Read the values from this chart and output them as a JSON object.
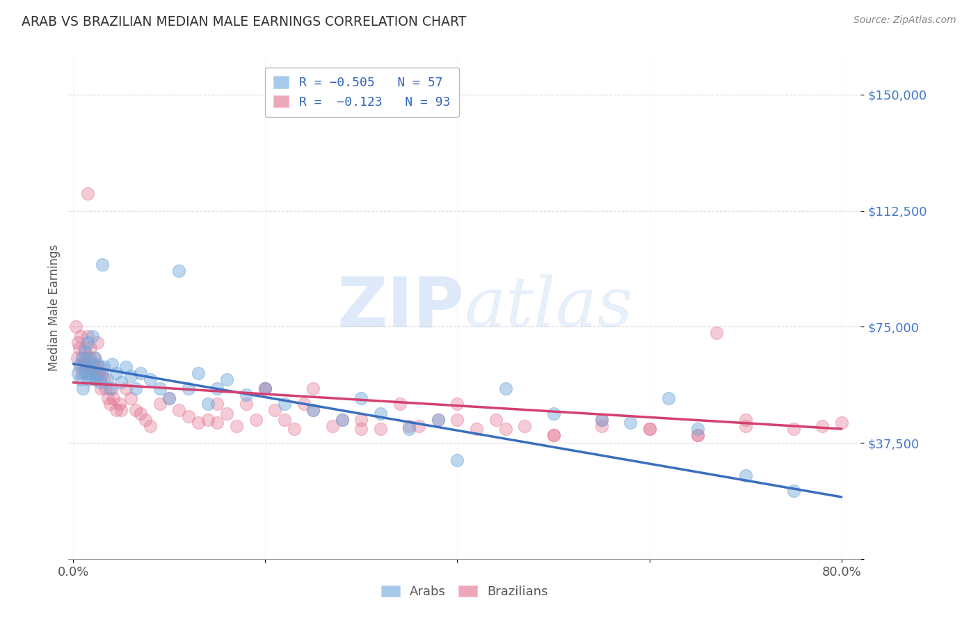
{
  "title": "ARAB VS BRAZILIAN MEDIAN MALE EARNINGS CORRELATION CHART",
  "source": "Source: ZipAtlas.com",
  "ylabel": "Median Male Earnings",
  "ytick_values": [
    0,
    37500,
    75000,
    112500,
    150000
  ],
  "ytick_labels": [
    "",
    "$37,500",
    "$75,000",
    "$112,500",
    "$150,000"
  ],
  "ylim": [
    0,
    162500
  ],
  "xlim": [
    0.0,
    0.8
  ],
  "legend_arab": "R = −0.505   N = 57",
  "legend_braz": "R =  −0.123   N = 93",
  "arab_color": "#6fa8dc",
  "braz_color": "#e06c8a",
  "arab_line_color": "#3a6fbe",
  "braz_line_color": "#d44070",
  "watermark_zip": "ZIP",
  "watermark_atlas": "atlas",
  "arab_x": [
    0.005,
    0.007,
    0.008,
    0.009,
    0.01,
    0.012,
    0.013,
    0.014,
    0.015,
    0.016,
    0.017,
    0.018,
    0.019,
    0.02,
    0.022,
    0.024,
    0.025,
    0.027,
    0.028,
    0.03,
    0.032,
    0.035,
    0.038,
    0.04,
    0.045,
    0.05,
    0.055,
    0.06,
    0.065,
    0.07,
    0.08,
    0.09,
    0.1,
    0.11,
    0.12,
    0.13,
    0.14,
    0.15,
    0.16,
    0.18,
    0.2,
    0.22,
    0.25,
    0.28,
    0.3,
    0.32,
    0.35,
    0.38,
    0.4,
    0.45,
    0.5,
    0.55,
    0.58,
    0.62,
    0.65,
    0.7,
    0.75
  ],
  "arab_y": [
    60000,
    63000,
    58000,
    65000,
    55000,
    67000,
    60000,
    62000,
    70000,
    58000,
    64000,
    61000,
    59000,
    72000,
    65000,
    58000,
    63000,
    60000,
    57000,
    95000,
    62000,
    58000,
    55000,
    63000,
    60000,
    57000,
    62000,
    59000,
    55000,
    60000,
    58000,
    55000,
    52000,
    93000,
    55000,
    60000,
    50000,
    55000,
    58000,
    53000,
    55000,
    50000,
    48000,
    45000,
    52000,
    47000,
    42000,
    45000,
    32000,
    55000,
    47000,
    45000,
    44000,
    52000,
    42000,
    27000,
    22000
  ],
  "braz_x": [
    0.003,
    0.004,
    0.005,
    0.006,
    0.007,
    0.008,
    0.009,
    0.01,
    0.011,
    0.012,
    0.013,
    0.014,
    0.015,
    0.015,
    0.016,
    0.017,
    0.018,
    0.019,
    0.02,
    0.021,
    0.022,
    0.023,
    0.024,
    0.025,
    0.026,
    0.027,
    0.028,
    0.029,
    0.03,
    0.032,
    0.034,
    0.036,
    0.038,
    0.04,
    0.042,
    0.045,
    0.048,
    0.05,
    0.055,
    0.06,
    0.065,
    0.07,
    0.075,
    0.08,
    0.09,
    0.1,
    0.11,
    0.12,
    0.13,
    0.14,
    0.15,
    0.16,
    0.17,
    0.18,
    0.19,
    0.2,
    0.21,
    0.22,
    0.23,
    0.24,
    0.25,
    0.27,
    0.28,
    0.3,
    0.32,
    0.34,
    0.36,
    0.38,
    0.4,
    0.42,
    0.44,
    0.47,
    0.5,
    0.55,
    0.6,
    0.65,
    0.67,
    0.7,
    0.15,
    0.2,
    0.25,
    0.3,
    0.35,
    0.4,
    0.45,
    0.5,
    0.55,
    0.6,
    0.65,
    0.7,
    0.75,
    0.78,
    0.8
  ],
  "braz_y": [
    75000,
    65000,
    70000,
    68000,
    62000,
    72000,
    60000,
    65000,
    63000,
    68000,
    61000,
    65000,
    118000,
    72000,
    60000,
    65000,
    68000,
    62000,
    63000,
    60000,
    65000,
    58000,
    62000,
    70000,
    60000,
    62000,
    58000,
    55000,
    60000,
    58000,
    55000,
    52000,
    50000,
    55000,
    52000,
    48000,
    50000,
    48000,
    55000,
    52000,
    48000,
    47000,
    45000,
    43000,
    50000,
    52000,
    48000,
    46000,
    44000,
    45000,
    50000,
    47000,
    43000,
    50000,
    45000,
    55000,
    48000,
    45000,
    42000,
    50000,
    55000,
    43000,
    45000,
    45000,
    42000,
    50000,
    43000,
    45000,
    50000,
    42000,
    45000,
    43000,
    40000,
    45000,
    42000,
    40000,
    73000,
    45000,
    44000,
    55000,
    48000,
    42000,
    43000,
    45000,
    42000,
    40000,
    43000,
    42000,
    40000,
    43000,
    42000,
    43000,
    44000
  ],
  "arab_line_x0": 0.0,
  "arab_line_y0": 63000,
  "arab_line_x1": 0.8,
  "arab_line_y1": 20000,
  "braz_line_x0": 0.0,
  "braz_line_y0": 57000,
  "braz_line_x1": 0.8,
  "braz_line_y1": 42000
}
